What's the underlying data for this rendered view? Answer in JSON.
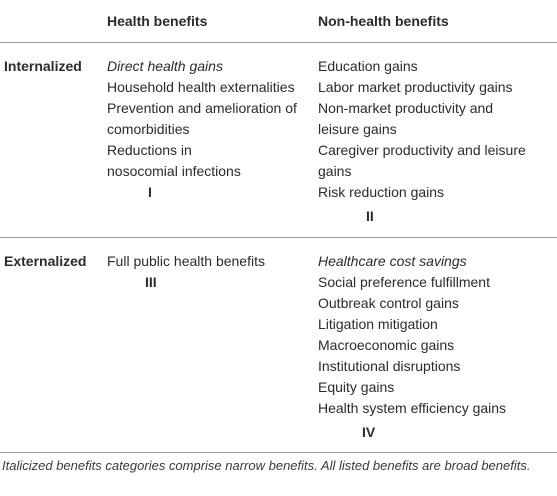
{
  "table": {
    "header": {
      "health": "Health benefits",
      "non_health": "Non-health benefits"
    },
    "rows": [
      {
        "label": "Internalized",
        "health": [
          "Direct health gains",
          "Household health externalities",
          "Prevention and amelioration of",
          "comorbidities",
          "Reductions in",
          "nosocomial infections"
        ],
        "health_numeral": "I",
        "non_health": [
          "Education gains",
          "Labor market productivity gains",
          "Non-market productivity and",
          "leisure gains",
          "Caregiver productivity and leisure",
          "gains",
          "Risk reduction gains"
        ],
        "non_health_numeral": "II"
      },
      {
        "label": "Externalized",
        "health": [
          "Full public health benefits"
        ],
        "health_numeral": "III",
        "non_health": [
          "Healthcare cost savings",
          "Social preference fulfillment",
          "Outbreak control gains",
          "Litigation mitigation",
          "Macroeconomic gains",
          "Institutional disruptions",
          "Equity gains",
          "Health system efficiency gains"
        ],
        "non_health_numeral": "IV"
      }
    ],
    "footnote": "Italicized benefits categories comprise narrow benefits. All listed benefits are broad benefits."
  }
}
